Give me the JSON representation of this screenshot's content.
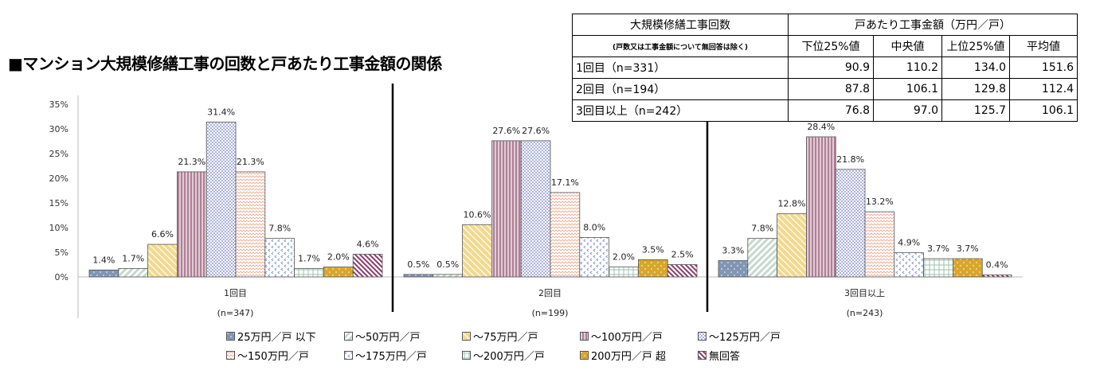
{
  "title": "■マンション大規模修繕工事の回数と戸あたり工事金額の関係",
  "table": {
    "header_col1": "大規模修繕工事回数",
    "header_col1_note": "(戸数又は工事金額について無回答は除く)",
    "header_group": "戸あたり工事金額（万円／戸）",
    "columns": [
      "下位25%値",
      "中央値",
      "上位25%値",
      "平均値"
    ],
    "rows": [
      {
        "label": "1回目（n=331）",
        "values": [
          "90.9",
          "110.2",
          "134.0",
          "151.6"
        ]
      },
      {
        "label": "2回目（n=194）",
        "values": [
          "87.8",
          "106.1",
          "129.8",
          "112.4"
        ]
      },
      {
        "label": "3回目以上（n=242）",
        "values": [
          "76.8",
          "97.0",
          "125.7",
          "106.1"
        ]
      }
    ]
  },
  "chart_data": {
    "type": "bar",
    "categories": [
      "1回目",
      "2回目",
      "3回目以上"
    ],
    "category_notes": [
      "(n=347)",
      "(n=199)",
      "(n=243)"
    ],
    "ylim": [
      0,
      35
    ],
    "yticks": [
      "0%",
      "5%",
      "10%",
      "15%",
      "20%",
      "25%",
      "30%",
      "35%"
    ],
    "legend_position": "bottom",
    "series": [
      {
        "name": "25万円／戸 以下",
        "values": [
          1.4,
          0.5,
          3.3
        ],
        "color": "#8196b4"
      },
      {
        "name": "～50万円／戸",
        "values": [
          1.7,
          0.5,
          7.8
        ],
        "color": "#c5dacd"
      },
      {
        "name": "～75万円／戸",
        "values": [
          6.6,
          10.6,
          12.8
        ],
        "color": "#f1d98e"
      },
      {
        "name": "～100万円／戸",
        "values": [
          21.3,
          27.6,
          28.4
        ],
        "color": "#b07f96"
      },
      {
        "name": "～125万円／戸",
        "values": [
          31.4,
          27.6,
          21.8
        ],
        "color": "#aab0dc"
      },
      {
        "name": "～150万円／戸",
        "values": [
          21.3,
          17.1,
          13.2
        ],
        "color": "#eeae96"
      },
      {
        "name": "～175万円／戸",
        "values": [
          7.8,
          8.0,
          4.9
        ],
        "color": "#7b93c6"
      },
      {
        "name": "～200万円／戸",
        "values": [
          1.7,
          2.0,
          3.7
        ],
        "color": "#9cc0ae"
      },
      {
        "name": "200万円／戸 超",
        "values": [
          2.0,
          3.5,
          3.7
        ],
        "color": "#d8a62a"
      },
      {
        "name": "無回答",
        "values": [
          4.6,
          2.5,
          0.4
        ],
        "color": "#8a3a6a"
      }
    ]
  }
}
